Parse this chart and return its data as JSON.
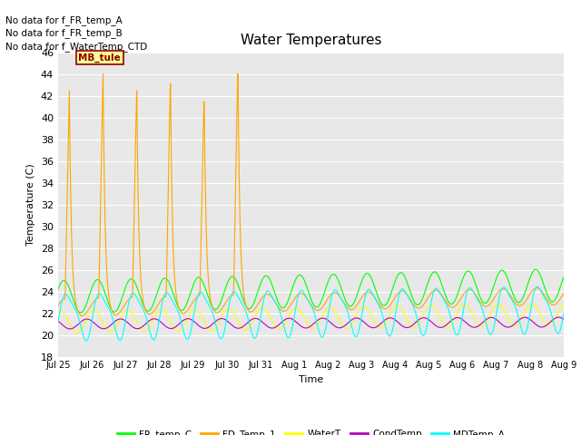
{
  "title": "Water Temperatures",
  "ylabel": "Temperature (C)",
  "xlabel": "Time",
  "ylim": [
    18,
    46
  ],
  "yticks": [
    18,
    20,
    22,
    24,
    26,
    28,
    30,
    32,
    34,
    36,
    38,
    40,
    42,
    44,
    46
  ],
  "colors": {
    "FR_temp_C": "#00ff00",
    "FD_Temp_1": "#ffa500",
    "WaterT": "#ffff00",
    "CondTemp": "#bb00bb",
    "MDTemp_A": "#00ffff"
  },
  "no_data_texts": [
    "No data for f_FR_temp_A",
    "No data for f_FR_temp_B",
    "No data for f_WaterTemp_CTD"
  ],
  "mb_tule_label": "MB_tule",
  "bg_color": "#e8e8e8",
  "fig_bg_color": "#ffffff",
  "legend_labels": [
    "FR_temp_C",
    "FD_Temp_1",
    "WaterT",
    "CondTemp",
    "MDTemp_A"
  ],
  "total_points": 1440,
  "n_days": 15
}
